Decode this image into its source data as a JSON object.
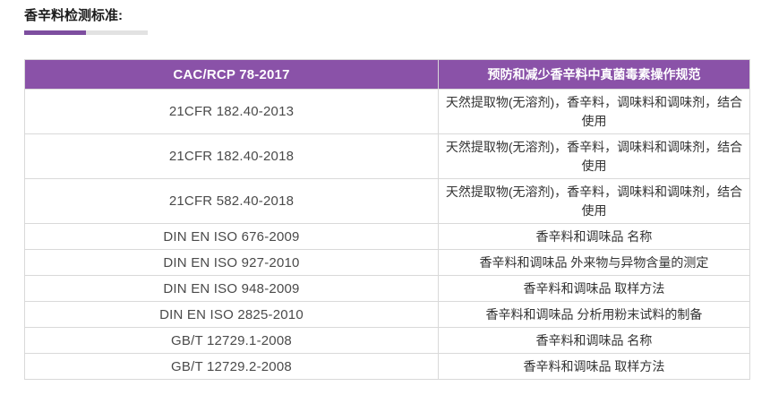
{
  "page": {
    "title": "香辛料检测标准:"
  },
  "colors": {
    "header_bg": "#8a52a8",
    "underline_purple": "#7d4e9f",
    "underline_gray": "#e2e2e2",
    "border": "#d9d9d9"
  },
  "table": {
    "header": {
      "code": "CAC/RCP 78-2017",
      "description": "预防和减少香辛料中真菌毒素操作规范"
    },
    "rows": [
      {
        "code": "21CFR 182.40-2013",
        "description": "天然提取物(无溶剂)，香辛料，调味料和调味剂，结合使用"
      },
      {
        "code": "21CFR 182.40-2018",
        "description": "天然提取物(无溶剂)，香辛料，调味料和调味剂，结合使用"
      },
      {
        "code": "21CFR 582.40-2018",
        "description": "天然提取物(无溶剂)，香辛料，调味料和调味剂，结合使用"
      },
      {
        "code": "DIN EN ISO 676-2009",
        "description": "香辛料和调味品 名称"
      },
      {
        "code": "DIN EN ISO 927-2010",
        "description": "香辛料和调味品 外来物与异物含量的测定"
      },
      {
        "code": "DIN EN ISO 948-2009",
        "description": "香辛料和调味品 取样方法"
      },
      {
        "code": "DIN EN ISO 2825-2010",
        "description": "香辛料和调味品 分析用粉末试料的制备"
      },
      {
        "code": "GB/T 12729.1-2008",
        "description": "香辛料和调味品 名称"
      },
      {
        "code": "GB/T 12729.2-2008",
        "description": "香辛料和调味品 取样方法"
      }
    ]
  }
}
